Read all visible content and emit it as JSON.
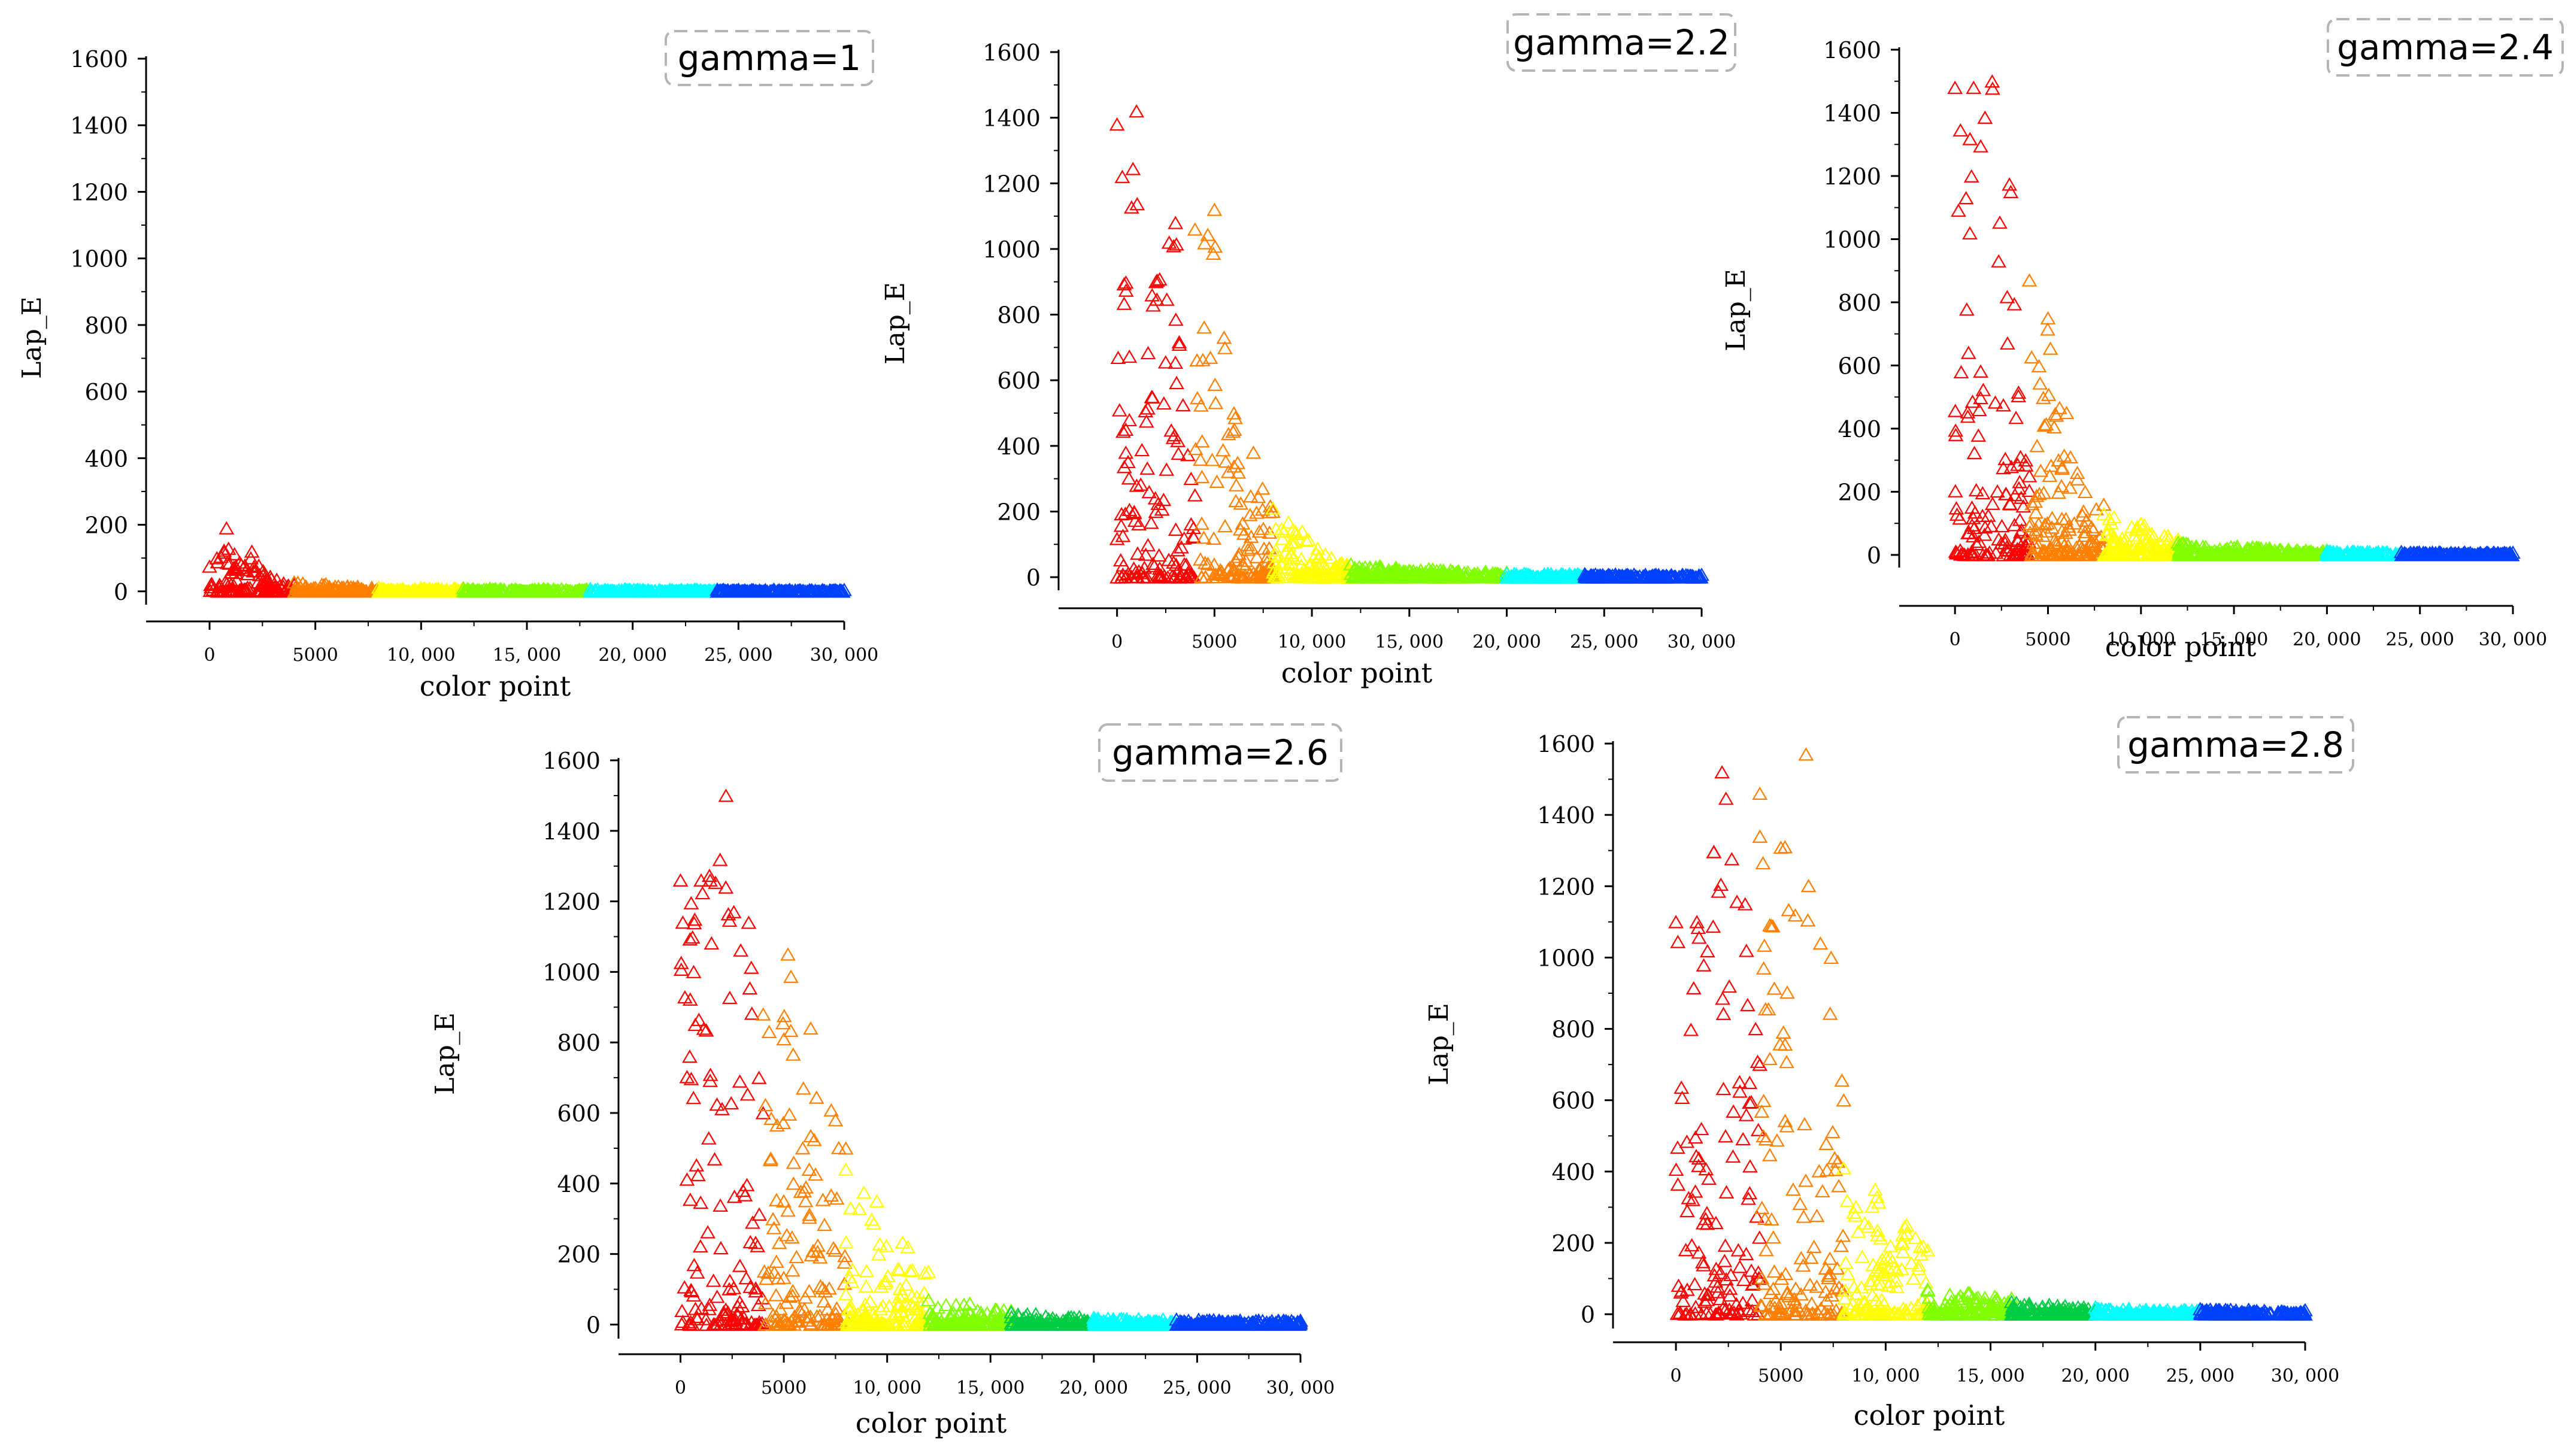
{
  "chart_data": [
    {
      "type": "scatter",
      "title": "gamma=1",
      "xlabel": "color point",
      "ylabel": "Lap_E",
      "xlim": [
        -3000,
        30000
      ],
      "ylim": [
        -40,
        1600
      ],
      "y_ticks": [
        0,
        200,
        400,
        600,
        800,
        1000,
        1200,
        1400,
        1600
      ],
      "x_ticks": [
        0,
        5000,
        10000,
        15000,
        20000,
        25000,
        30000
      ],
      "x_tick_labels": [
        "0",
        "5000",
        "10, 000",
        "15, 000",
        "20, 000",
        "25, 000",
        "30, 000"
      ],
      "marker": "open-triangle",
      "series": [
        {
          "color": "#ff0000",
          "x_range": [
            0,
            4000
          ],
          "peak": 190,
          "envelope": [
            [
              0,
              75
            ],
            [
              800,
              190
            ],
            [
              1500,
              80
            ],
            [
              2000,
              120
            ],
            [
              2600,
              55
            ],
            [
              3500,
              25
            ],
            [
              4000,
              20
            ]
          ]
        },
        {
          "color": "#ff8000",
          "x_range": [
            4000,
            8000
          ],
          "peak": 28,
          "envelope": [
            [
              4000,
              28
            ],
            [
              5500,
              22
            ],
            [
              7000,
              15
            ],
            [
              8000,
              12
            ]
          ]
        },
        {
          "color": "#ffff00",
          "x_range": [
            8000,
            12000
          ],
          "peak": 12,
          "envelope": [
            [
              8000,
              12
            ],
            [
              12000,
              10
            ]
          ]
        },
        {
          "color": "#80ff00",
          "x_range": [
            12000,
            18000
          ],
          "peak": 10,
          "envelope": [
            [
              12000,
              10
            ],
            [
              18000,
              8
            ]
          ]
        },
        {
          "color": "#00ffff",
          "x_range": [
            18000,
            24000
          ],
          "peak": 8,
          "envelope": [
            [
              18000,
              8
            ],
            [
              24000,
              6
            ]
          ]
        },
        {
          "color": "#0040ff",
          "x_range": [
            24000,
            30000
          ],
          "peak": 6,
          "envelope": [
            [
              24000,
              6
            ],
            [
              30000,
              5
            ]
          ]
        }
      ]
    },
    {
      "type": "scatter",
      "title": "gamma=2.2",
      "xlabel": "color point",
      "ylabel": "Lap_E",
      "xlim": [
        -3000,
        30000
      ],
      "ylim": [
        -40,
        1600
      ],
      "y_ticks": [
        0,
        200,
        400,
        600,
        800,
        1000,
        1200,
        1400,
        1600
      ],
      "x_ticks": [
        0,
        5000,
        10000,
        15000,
        20000,
        25000,
        30000
      ],
      "x_tick_labels": [
        "0",
        "5000",
        "10, 000",
        "15, 000",
        "20, 000",
        "25, 000",
        "30, 000"
      ],
      "marker": "open-triangle",
      "series": [
        {
          "color": "#ff0000",
          "x_range": [
            0,
            4000
          ],
          "peak": 1420,
          "envelope": [
            [
              0,
              1380
            ],
            [
              1000,
              1420
            ],
            [
              2000,
              900
            ],
            [
              3000,
              1080
            ],
            [
              3800,
              300
            ],
            [
              4000,
              250
            ]
          ]
        },
        {
          "color": "#ff8000",
          "x_range": [
            4000,
            8000
          ],
          "peak": 1120,
          "envelope": [
            [
              4000,
              1060
            ],
            [
              5000,
              1120
            ],
            [
              6000,
              500
            ],
            [
              7000,
              380
            ],
            [
              8000,
              200
            ]
          ]
        },
        {
          "color": "#ffff00",
          "x_range": [
            8000,
            12000
          ],
          "peak": 210,
          "envelope": [
            [
              8000,
              210
            ],
            [
              9500,
              140
            ],
            [
              11000,
              60
            ],
            [
              12000,
              40
            ]
          ]
        },
        {
          "color": "#80ff00",
          "x_range": [
            12000,
            20000
          ],
          "peak": 40,
          "envelope": [
            [
              12000,
              40
            ],
            [
              16000,
              25
            ],
            [
              20000,
              15
            ]
          ]
        },
        {
          "color": "#00ffff",
          "x_range": [
            20000,
            24000
          ],
          "peak": 12,
          "envelope": [
            [
              20000,
              12
            ],
            [
              24000,
              10
            ]
          ]
        },
        {
          "color": "#0040ff",
          "x_range": [
            24000,
            30000
          ],
          "peak": 10,
          "envelope": [
            [
              24000,
              10
            ],
            [
              30000,
              8
            ]
          ]
        }
      ]
    },
    {
      "type": "scatter",
      "title": "gamma=2.4",
      "xlabel": "color point",
      "ylabel": "Lap_E",
      "xlim": [
        -3000,
        30000
      ],
      "ylim": [
        -40,
        1600
      ],
      "y_ticks": [
        0,
        200,
        400,
        600,
        800,
        1000,
        1200,
        1400,
        1600
      ],
      "x_ticks": [
        0,
        5000,
        10000,
        15000,
        20000,
        25000,
        30000
      ],
      "x_tick_labels": [
        "0",
        "5000",
        "10, 000",
        "15, 000",
        "20, 000",
        "25, 000",
        "30, 000"
      ],
      "marker": "open-triangle",
      "series": [
        {
          "color": "#ff0000",
          "x_range": [
            0,
            4000
          ],
          "peak": 1500,
          "envelope": [
            [
              0,
              1480
            ],
            [
              1000,
              1480
            ],
            [
              2000,
              1500
            ],
            [
              3000,
              1150
            ],
            [
              3800,
              300
            ],
            [
              4000,
              250
            ]
          ]
        },
        {
          "color": "#ff8000",
          "x_range": [
            4000,
            8000
          ],
          "peak": 870,
          "envelope": [
            [
              4000,
              870
            ],
            [
              5000,
              750
            ],
            [
              6000,
              450
            ],
            [
              7000,
              200
            ],
            [
              8000,
              160
            ]
          ]
        },
        {
          "color": "#ffff00",
          "x_range": [
            8000,
            12000
          ],
          "peak": 130,
          "envelope": [
            [
              8000,
              130
            ],
            [
              10000,
              100
            ],
            [
              12000,
              50
            ]
          ]
        },
        {
          "color": "#80ff00",
          "x_range": [
            12000,
            20000
          ],
          "peak": 40,
          "envelope": [
            [
              12000,
              40
            ],
            [
              16000,
              25
            ],
            [
              20000,
              15
            ]
          ]
        },
        {
          "color": "#00ffff",
          "x_range": [
            20000,
            24000
          ],
          "peak": 12,
          "envelope": [
            [
              20000,
              12
            ],
            [
              24000,
              10
            ]
          ]
        },
        {
          "color": "#0040ff",
          "x_range": [
            24000,
            30000
          ],
          "peak": 10,
          "envelope": [
            [
              24000,
              10
            ],
            [
              30000,
              8
            ]
          ]
        }
      ]
    },
    {
      "type": "scatter",
      "title": "gamma=2.6",
      "xlabel": "color point",
      "ylabel": "Lap_E",
      "xlim": [
        -3000,
        30000
      ],
      "ylim": [
        -40,
        1600
      ],
      "y_ticks": [
        0,
        200,
        400,
        600,
        800,
        1000,
        1200,
        1400,
        1600
      ],
      "x_ticks": [
        0,
        5000,
        10000,
        15000,
        20000,
        25000,
        30000
      ],
      "x_tick_labels": [
        "0",
        "5000",
        "10, 000",
        "15, 000",
        "20, 000",
        "25, 000",
        "30, 000"
      ],
      "marker": "open-triangle",
      "series": [
        {
          "color": "#ff0000",
          "x_range": [
            0,
            4000
          ],
          "peak": 1500,
          "envelope": [
            [
              0,
              1260
            ],
            [
              1000,
              1260
            ],
            [
              2200,
              1500
            ],
            [
              3300,
              1140
            ],
            [
              3800,
              700
            ],
            [
              4000,
              600
            ]
          ]
        },
        {
          "color": "#ff8000",
          "x_range": [
            4000,
            8000
          ],
          "peak": 1050,
          "envelope": [
            [
              4000,
              880
            ],
            [
              5200,
              1050
            ],
            [
              6300,
              840
            ],
            [
              7500,
              580
            ],
            [
              8000,
              500
            ]
          ]
        },
        {
          "color": "#ffff00",
          "x_range": [
            8000,
            12000
          ],
          "peak": 440,
          "envelope": [
            [
              8000,
              440
            ],
            [
              9500,
              350
            ],
            [
              11000,
              220
            ],
            [
              12000,
              150
            ]
          ]
        },
        {
          "color": "#80ff00",
          "x_range": [
            12000,
            16000
          ],
          "peak": 70,
          "envelope": [
            [
              12000,
              70
            ],
            [
              14000,
              60
            ],
            [
              16000,
              40
            ]
          ]
        },
        {
          "color": "#00cc44",
          "x_range": [
            16000,
            20000
          ],
          "peak": 35,
          "envelope": [
            [
              16000,
              35
            ],
            [
              20000,
              20
            ]
          ]
        },
        {
          "color": "#00ffff",
          "x_range": [
            20000,
            24000
          ],
          "peak": 20,
          "envelope": [
            [
              20000,
              20
            ],
            [
              24000,
              15
            ]
          ]
        },
        {
          "color": "#0040ff",
          "x_range": [
            24000,
            30000
          ],
          "peak": 15,
          "envelope": [
            [
              24000,
              15
            ],
            [
              30000,
              12
            ]
          ]
        }
      ]
    },
    {
      "type": "scatter",
      "title": "gamma=2.8",
      "xlabel": "color point",
      "ylabel": "Lap_E",
      "xlim": [
        -3000,
        30000
      ],
      "ylim": [
        -40,
        1600
      ],
      "y_ticks": [
        0,
        200,
        400,
        600,
        800,
        1000,
        1200,
        1400,
        1600
      ],
      "x_ticks": [
        0,
        5000,
        10000,
        15000,
        20000,
        25000,
        30000
      ],
      "x_tick_labels": [
        "0",
        "5000",
        "10, 000",
        "15, 000",
        "20, 000",
        "25, 000",
        "30, 000"
      ],
      "marker": "open-triangle",
      "series": [
        {
          "color": "#ff0000",
          "x_range": [
            0,
            4000
          ],
          "peak": 1520,
          "envelope": [
            [
              0,
              1100
            ],
            [
              1000,
              1100
            ],
            [
              2200,
              1520
            ],
            [
              3300,
              1150
            ],
            [
              3800,
              800
            ],
            [
              4000,
              700
            ]
          ]
        },
        {
          "color": "#ff8000",
          "x_range": [
            4000,
            8000
          ],
          "peak": 1570,
          "envelope": [
            [
              4000,
              1460
            ],
            [
              5200,
              1310
            ],
            [
              6200,
              1570
            ],
            [
              7400,
              1000
            ],
            [
              8000,
              600
            ]
          ]
        },
        {
          "color": "#ffff00",
          "x_range": [
            8000,
            12000
          ],
          "peak": 410,
          "envelope": [
            [
              8000,
              410
            ],
            [
              9500,
              350
            ],
            [
              11000,
              250
            ],
            [
              12000,
              180
            ]
          ]
        },
        {
          "color": "#80ff00",
          "x_range": [
            12000,
            16000
          ],
          "peak": 70,
          "envelope": [
            [
              12000,
              70
            ],
            [
              14000,
              60
            ],
            [
              16000,
              45
            ]
          ]
        },
        {
          "color": "#00cc44",
          "x_range": [
            16000,
            20000
          ],
          "peak": 35,
          "envelope": [
            [
              16000,
              35
            ],
            [
              20000,
              20
            ]
          ]
        },
        {
          "color": "#00ffff",
          "x_range": [
            20000,
            25000
          ],
          "peak": 20,
          "envelope": [
            [
              20000,
              20
            ],
            [
              25000,
              15
            ]
          ]
        },
        {
          "color": "#0040ff",
          "x_range": [
            25000,
            30000
          ],
          "peak": 15,
          "envelope": [
            [
              25000,
              15
            ],
            [
              30000,
              12
            ]
          ]
        }
      ]
    }
  ]
}
